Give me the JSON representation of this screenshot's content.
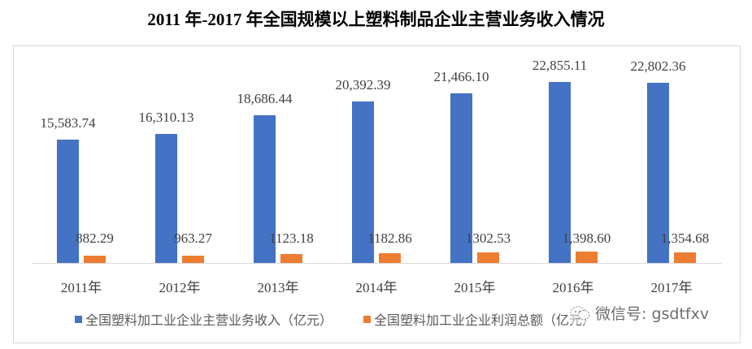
{
  "title": "2011 年-2017 年全国规模以上塑料制品企业主营业务收入情况",
  "legend": [
    {
      "label": "全国塑料加工业企业主营业务收入（亿元）",
      "color": "#4472c4"
    },
    {
      "label": "全国塑料加工业企业利润总额（亿元）",
      "color": "#ed7d31"
    }
  ],
  "watermark": {
    "icon": "wechat-icon",
    "text": "微信号: gsdtfxv"
  },
  "chart_data": {
    "type": "bar",
    "title": "2011 年-2017 年全国规模以上塑料制品企业主营业务收入情况",
    "categories": [
      "2011年",
      "2012年",
      "2013年",
      "2014年",
      "2015年",
      "2016年",
      "2017年"
    ],
    "series": [
      {
        "name": "全国塑料加工业企业主营业务收入（亿元）",
        "color": "#4472c4",
        "values": [
          15583.74,
          16310.13,
          18686.44,
          20392.39,
          21466.1,
          22855.11,
          22802.36
        ],
        "labels": [
          "15,583.74",
          "16,310.13",
          "18,686.44",
          "20,392.39",
          "21,466.10",
          "22,855.11",
          "22,802.36"
        ]
      },
      {
        "name": "全国塑料加工业企业利润总额（亿元）",
        "color": "#ed7d31",
        "values": [
          882.29,
          963.27,
          1123.18,
          1182.86,
          1302.53,
          1398.6,
          1354.68
        ],
        "labels": [
          "882.29",
          "963.27",
          "1123.18",
          "1182.86",
          "1302.53",
          "1,398.60",
          "1,354.68"
        ]
      }
    ],
    "xlabel": "",
    "ylabel": "",
    "ylim": [
      0,
      26000
    ],
    "grid": false,
    "legend_position": "bottom",
    "data_labels": true
  }
}
